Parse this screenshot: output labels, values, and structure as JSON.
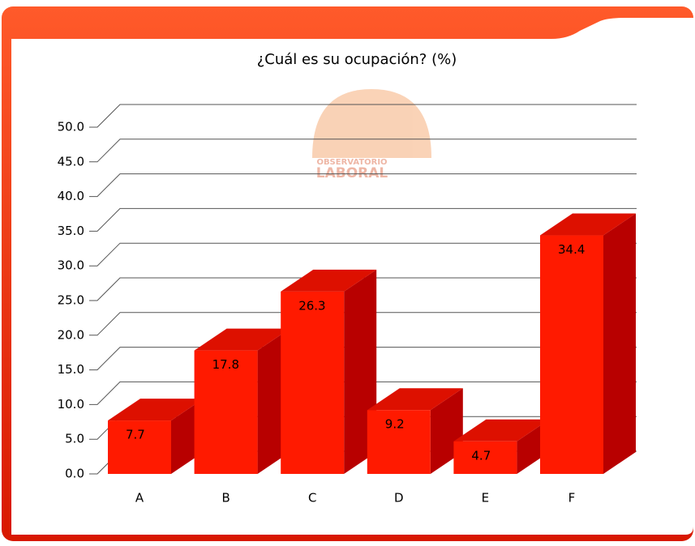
{
  "chart_data": {
    "type": "bar3d",
    "title": "¿Cuál es su ocupación? (%)",
    "logo": [
      "OBSERVATORIO",
      "LABORAL"
    ],
    "categories": [
      "A",
      "B",
      "C",
      "D",
      "E",
      "F"
    ],
    "values": [
      7.7,
      17.8,
      26.3,
      9.2,
      4.7,
      34.4
    ],
    "color": "#ff1a00",
    "ylim": [
      0,
      50
    ],
    "yticks": [
      {
        "value": 0,
        "label": "0.0"
      },
      {
        "value": 5,
        "label": "5.0"
      },
      {
        "value": 10,
        "label": "10.0"
      },
      {
        "value": 15,
        "label": "15.0"
      },
      {
        "value": 20,
        "label": "20.0"
      },
      {
        "value": 25,
        "label": "25.0"
      },
      {
        "value": 30,
        "label": "30.0"
      },
      {
        "value": 35,
        "label": "35.0"
      },
      {
        "value": 40,
        "label": "40.0"
      },
      {
        "value": 45,
        "label": "45.0"
      },
      {
        "value": 50,
        "label": "50.0"
      }
    ],
    "grid": true
  }
}
